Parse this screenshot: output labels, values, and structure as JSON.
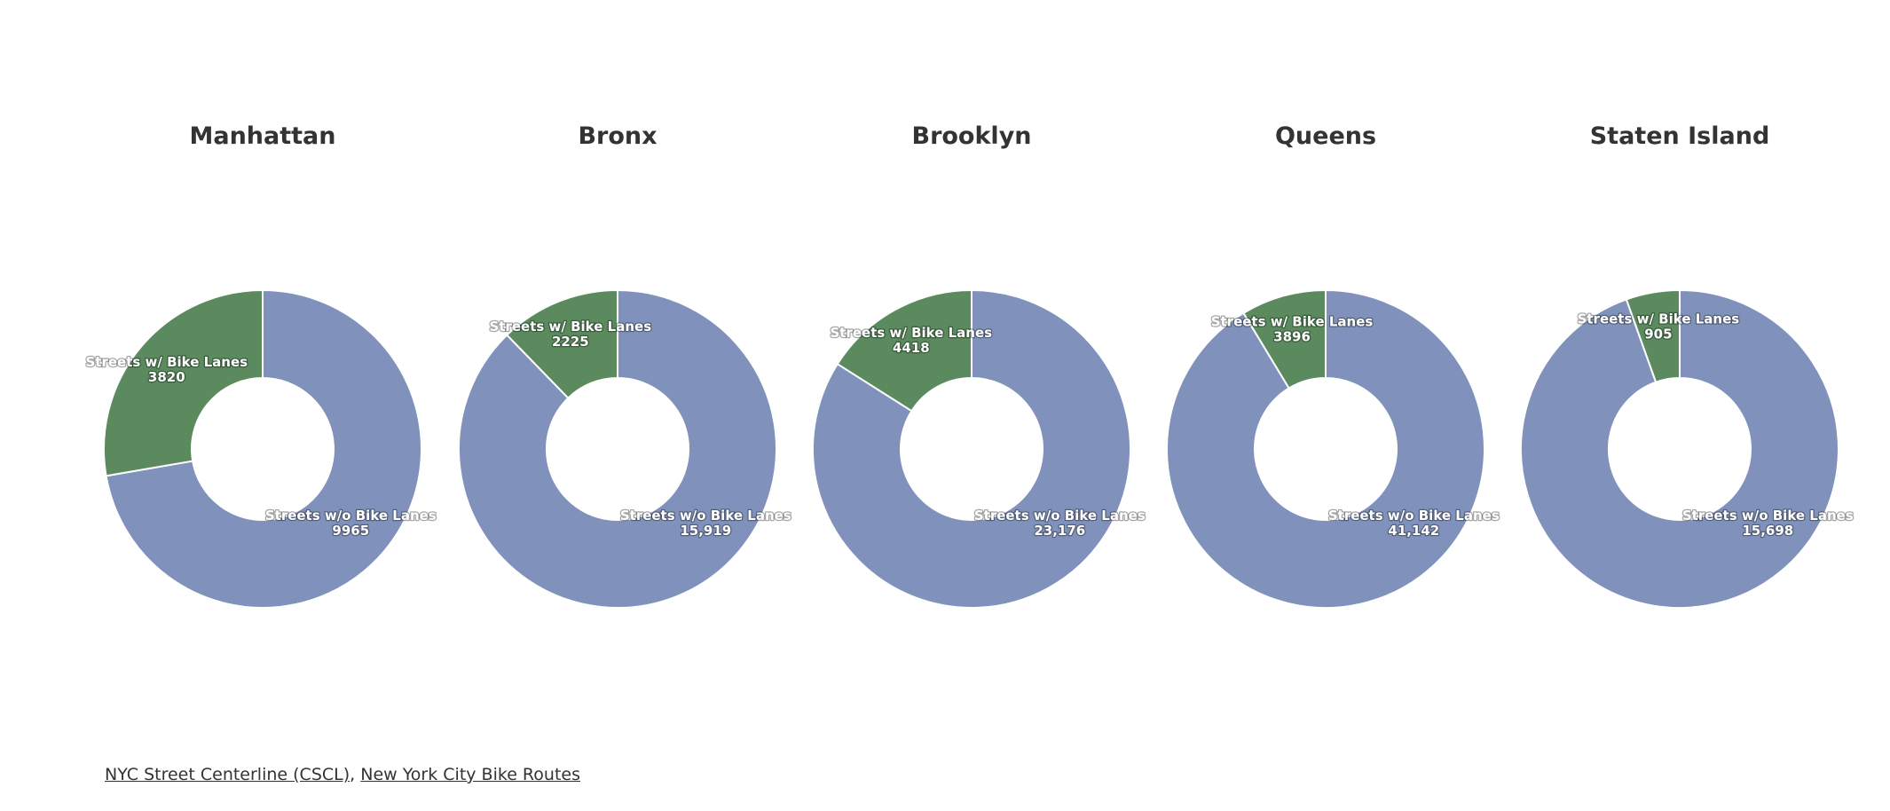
{
  "chart_data": [
    {
      "type": "pie",
      "title": "Manhattan",
      "slices": [
        {
          "label": "Streets w/o Bike Lanes",
          "value": 9965,
          "display": "9965",
          "color": "#8092bb"
        },
        {
          "label": "Streets w/ Bike Lanes",
          "value": 3820,
          "display": "3820",
          "color": "#5a8a5e"
        }
      ]
    },
    {
      "type": "pie",
      "title": "Bronx",
      "slices": [
        {
          "label": "Streets w/o Bike Lanes",
          "value": 15919,
          "display": "15,919",
          "color": "#8092bb"
        },
        {
          "label": "Streets w/ Bike Lanes",
          "value": 2225,
          "display": "2225",
          "color": "#5a8a5e"
        }
      ]
    },
    {
      "type": "pie",
      "title": "Brooklyn",
      "slices": [
        {
          "label": "Streets w/o Bike Lanes",
          "value": 23176,
          "display": "23,176",
          "color": "#8092bb"
        },
        {
          "label": "Streets w/ Bike Lanes",
          "value": 4418,
          "display": "4418",
          "color": "#5a8a5e"
        }
      ]
    },
    {
      "type": "pie",
      "title": "Queens",
      "slices": [
        {
          "label": "Streets w/o Bike Lanes",
          "value": 41142,
          "display": "41,142",
          "color": "#8092bb"
        },
        {
          "label": "Streets w/ Bike Lanes",
          "value": 3896,
          "display": "3896",
          "color": "#5a8a5e"
        }
      ]
    },
    {
      "type": "pie",
      "title": "Staten Island",
      "slices": [
        {
          "label": "Streets w/o Bike Lanes",
          "value": 15698,
          "display": "15,698",
          "color": "#8092bb"
        },
        {
          "label": "Streets w/ Bike Lanes",
          "value": 905,
          "display": "905",
          "color": "#5a8a5e"
        }
      ]
    }
  ],
  "sources": {
    "link1": "NYC Street Centerline (CSCL)",
    "separator": ", ",
    "link2": "New York City Bike Routes"
  }
}
